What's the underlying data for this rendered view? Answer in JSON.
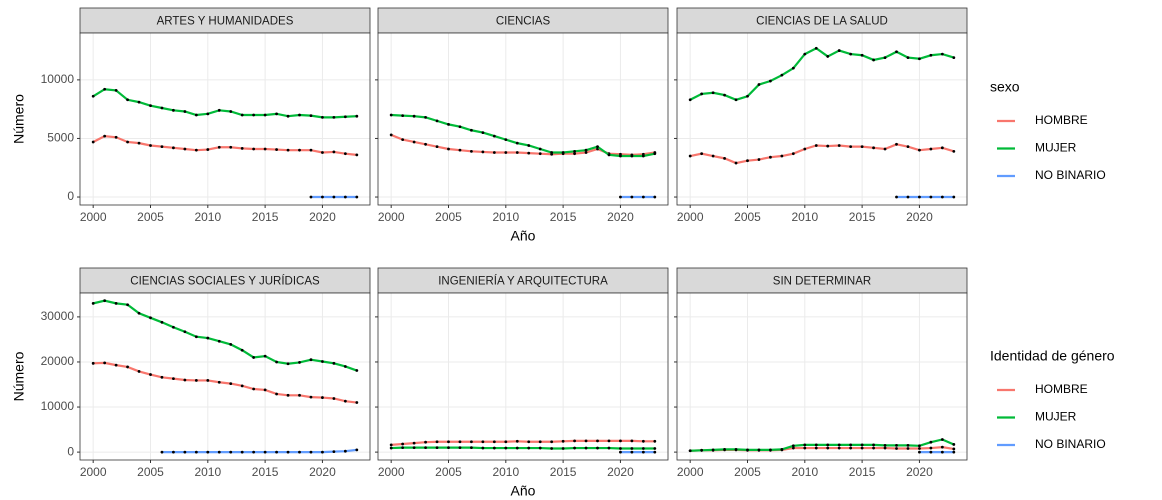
{
  "chart_data": [
    {
      "type": "line",
      "title": "ARTES Y HUMANIDADES",
      "y_label": "Número",
      "x": [
        2000,
        2001,
        2002,
        2003,
        2004,
        2005,
        2006,
        2007,
        2008,
        2009,
        2010,
        2011,
        2012,
        2013,
        2014,
        2015,
        2016,
        2017,
        2018,
        2019,
        2020,
        2021,
        2022,
        2023
      ],
      "xlim": [
        1998.85,
        2024.15
      ],
      "xticks": [
        2000,
        2005,
        2010,
        2015,
        2020
      ],
      "ylim": [
        -680,
        14000
      ],
      "yticks": [
        0,
        5000,
        10000
      ],
      "grid": true,
      "series": [
        {
          "name": "HOMBRE",
          "color": "#F8766D",
          "values": [
            4700,
            5200,
            5100,
            4700,
            4600,
            4400,
            4300,
            4200,
            4100,
            4000,
            4050,
            4250,
            4250,
            4150,
            4100,
            4100,
            4050,
            4000,
            4000,
            4000,
            3800,
            3850,
            3700,
            3600
          ]
        },
        {
          "name": "MUJER",
          "color": "#00BA38",
          "values": [
            8600,
            9200,
            9100,
            8300,
            8100,
            7800,
            7600,
            7400,
            7300,
            7000,
            7100,
            7400,
            7300,
            7000,
            7000,
            7000,
            7100,
            6900,
            7000,
            6950,
            6800,
            6800,
            6850,
            6900
          ]
        },
        {
          "name": "NO BINARIO",
          "color": "#619CFF",
          "values": [
            null,
            null,
            null,
            null,
            null,
            null,
            null,
            null,
            null,
            null,
            null,
            null,
            null,
            null,
            null,
            null,
            null,
            null,
            null,
            0,
            0,
            0,
            0,
            0
          ]
        }
      ]
    },
    {
      "type": "line",
      "title": "CIENCIAS",
      "x_label": "Año",
      "x": [
        2000,
        2001,
        2002,
        2003,
        2004,
        2005,
        2006,
        2007,
        2008,
        2009,
        2010,
        2011,
        2012,
        2013,
        2014,
        2015,
        2016,
        2017,
        2018,
        2019,
        2020,
        2021,
        2022,
        2023
      ],
      "xlim": [
        1998.85,
        2024.15
      ],
      "xticks": [
        2000,
        2005,
        2010,
        2015,
        2020
      ],
      "ylim": [
        -680,
        14000
      ],
      "yticks": [
        0,
        5000,
        10000
      ],
      "grid": true,
      "series": [
        {
          "name": "HOMBRE",
          "color": "#F8766D",
          "values": [
            5300,
            4900,
            4700,
            4500,
            4300,
            4100,
            4000,
            3900,
            3850,
            3800,
            3800,
            3800,
            3750,
            3700,
            3650,
            3700,
            3700,
            3800,
            4100,
            3700,
            3650,
            3600,
            3650,
            3800
          ]
        },
        {
          "name": "MUJER",
          "color": "#00BA38",
          "values": [
            7000,
            6950,
            6900,
            6800,
            6500,
            6200,
            6000,
            5700,
            5500,
            5200,
            4900,
            4600,
            4400,
            4100,
            3800,
            3800,
            3900,
            4000,
            4300,
            3600,
            3500,
            3500,
            3500,
            3700
          ]
        },
        {
          "name": "NO BINARIO",
          "color": "#619CFF",
          "values": [
            null,
            null,
            null,
            null,
            null,
            null,
            null,
            null,
            null,
            null,
            null,
            null,
            null,
            null,
            null,
            null,
            null,
            null,
            null,
            null,
            0,
            0,
            0,
            0
          ]
        }
      ]
    },
    {
      "type": "line",
      "title": "CIENCIAS DE LA SALUD",
      "x": [
        2000,
        2001,
        2002,
        2003,
        2004,
        2005,
        2006,
        2007,
        2008,
        2009,
        2010,
        2011,
        2012,
        2013,
        2014,
        2015,
        2016,
        2017,
        2018,
        2019,
        2020,
        2021,
        2022,
        2023
      ],
      "xlim": [
        1998.85,
        2024.15
      ],
      "xticks": [
        2000,
        2005,
        2010,
        2015,
        2020
      ],
      "ylim": [
        -680,
        14000
      ],
      "yticks": [
        0,
        5000,
        10000
      ],
      "grid": true,
      "series": [
        {
          "name": "HOMBRE",
          "color": "#F8766D",
          "values": [
            3500,
            3700,
            3500,
            3300,
            2900,
            3100,
            3200,
            3400,
            3500,
            3700,
            4100,
            4400,
            4350,
            4400,
            4300,
            4300,
            4200,
            4100,
            4500,
            4300,
            4000,
            4100,
            4200,
            3900
          ]
        },
        {
          "name": "MUJER",
          "color": "#00BA38",
          "values": [
            8300,
            8800,
            8900,
            8700,
            8300,
            8600,
            9600,
            9900,
            10400,
            11000,
            12200,
            12700,
            12000,
            12500,
            12200,
            12100,
            11700,
            11900,
            12400,
            11900,
            11800,
            12100,
            12200,
            11900
          ]
        },
        {
          "name": "NO BINARIO",
          "color": "#619CFF",
          "values": [
            null,
            null,
            null,
            null,
            null,
            null,
            null,
            null,
            null,
            null,
            null,
            null,
            null,
            null,
            null,
            null,
            null,
            null,
            0,
            0,
            0,
            0,
            0,
            0
          ]
        }
      ]
    },
    {
      "type": "line",
      "title": "CIENCIAS SOCIALES Y JURÍDICAS",
      "y_label": "Número",
      "x": [
        2000,
        2001,
        2002,
        2003,
        2004,
        2005,
        2006,
        2007,
        2008,
        2009,
        2010,
        2011,
        2012,
        2013,
        2014,
        2015,
        2016,
        2017,
        2018,
        2019,
        2020,
        2021,
        2022,
        2023
      ],
      "xlim": [
        1998.85,
        2024.15
      ],
      "xticks": [
        2000,
        2005,
        2010,
        2015,
        2020
      ],
      "ylim": [
        -1750,
        35300
      ],
      "yticks": [
        0,
        10000,
        20000,
        30000
      ],
      "grid": true,
      "series": [
        {
          "name": "HOMBRE",
          "color": "#F8766D",
          "values": [
            19700,
            19800,
            19300,
            18900,
            17900,
            17200,
            16600,
            16300,
            16000,
            15900,
            15900,
            15500,
            15200,
            14700,
            14000,
            13800,
            12900,
            12600,
            12600,
            12200,
            12100,
            11900,
            11300,
            11000
          ]
        },
        {
          "name": "MUJER",
          "color": "#00BA38",
          "values": [
            33000,
            33600,
            33000,
            32700,
            30800,
            29800,
            28800,
            27700,
            26700,
            25600,
            25300,
            24600,
            23900,
            22600,
            21000,
            21300,
            20000,
            19600,
            19900,
            20500,
            20100,
            19700,
            19000,
            18100
          ]
        },
        {
          "name": "NO BINARIO",
          "color": "#619CFF",
          "values": [
            null,
            null,
            null,
            null,
            null,
            null,
            0,
            0,
            0,
            0,
            0,
            0,
            0,
            0,
            0,
            0,
            0,
            0,
            0,
            0,
            0,
            100,
            200,
            500
          ]
        }
      ]
    },
    {
      "type": "line",
      "title": "INGENIERÍA Y ARQUITECTURA",
      "x_label": "Año",
      "x": [
        2000,
        2001,
        2002,
        2003,
        2004,
        2005,
        2006,
        2007,
        2008,
        2009,
        2010,
        2011,
        2012,
        2013,
        2014,
        2015,
        2016,
        2017,
        2018,
        2019,
        2020,
        2021,
        2022,
        2023
      ],
      "xlim": [
        1998.85,
        2024.15
      ],
      "xticks": [
        2000,
        2005,
        2010,
        2015,
        2020
      ],
      "ylim": [
        -1750,
        35300
      ],
      "yticks": [
        0,
        10000,
        20000,
        30000
      ],
      "grid": true,
      "series": [
        {
          "name": "HOMBRE",
          "color": "#F8766D",
          "values": [
            1600,
            1800,
            2000,
            2200,
            2300,
            2300,
            2300,
            2300,
            2300,
            2300,
            2300,
            2400,
            2300,
            2300,
            2300,
            2400,
            2500,
            2500,
            2500,
            2500,
            2500,
            2500,
            2400,
            2400
          ]
        },
        {
          "name": "MUJER",
          "color": "#00BA38",
          "values": [
            900,
            1000,
            1000,
            1000,
            1000,
            1000,
            1000,
            1000,
            900,
            900,
            900,
            900,
            900,
            900,
            800,
            800,
            900,
            900,
            900,
            900,
            800,
            800,
            800,
            800
          ]
        },
        {
          "name": "NO BINARIO",
          "color": "#619CFF",
          "values": [
            null,
            null,
            null,
            null,
            null,
            null,
            null,
            null,
            null,
            null,
            null,
            null,
            null,
            null,
            null,
            null,
            null,
            null,
            null,
            null,
            0,
            0,
            0,
            0
          ]
        }
      ]
    },
    {
      "type": "line",
      "title": "SIN DETERMINAR",
      "x": [
        2000,
        2001,
        2002,
        2003,
        2004,
        2005,
        2006,
        2007,
        2008,
        2009,
        2010,
        2011,
        2012,
        2013,
        2014,
        2015,
        2016,
        2017,
        2018,
        2019,
        2020,
        2021,
        2022,
        2023
      ],
      "xlim": [
        1998.85,
        2024.15
      ],
      "xticks": [
        2000,
        2005,
        2010,
        2015,
        2020
      ],
      "ylim": [
        -1750,
        35300
      ],
      "yticks": [
        0,
        10000,
        20000,
        30000
      ],
      "grid": true,
      "series": [
        {
          "name": "HOMBRE",
          "color": "#F8766D",
          "values": [
            300,
            400,
            400,
            500,
            500,
            400,
            400,
            400,
            500,
            900,
            900,
            900,
            900,
            900,
            900,
            900,
            900,
            900,
            800,
            800,
            800,
            900,
            1100,
            700
          ]
        },
        {
          "name": "MUJER",
          "color": "#00BA38",
          "values": [
            300,
            400,
            500,
            600,
            600,
            500,
            500,
            500,
            600,
            1400,
            1600,
            1600,
            1600,
            1600,
            1600,
            1600,
            1600,
            1500,
            1500,
            1500,
            1400,
            2200,
            2800,
            1700
          ]
        },
        {
          "name": "NO BINARIO",
          "color": "#619CFF",
          "values": [
            null,
            null,
            null,
            null,
            null,
            null,
            null,
            null,
            null,
            null,
            null,
            null,
            null,
            null,
            null,
            null,
            null,
            null,
            null,
            null,
            0,
            0,
            0,
            0
          ]
        }
      ]
    }
  ],
  "legends": [
    {
      "title": "sexo",
      "items": [
        {
          "name": "HOMBRE",
          "color": "#F8766D"
        },
        {
          "name": "MUJER",
          "color": "#00BA38"
        },
        {
          "name": "NO BINARIO",
          "color": "#619CFF"
        }
      ]
    },
    {
      "title": "Identidad de género",
      "items": [
        {
          "name": "HOMBRE",
          "color": "#F8766D"
        },
        {
          "name": "MUJER",
          "color": "#00BA38"
        },
        {
          "name": "NO BINARIO",
          "color": "#619CFF"
        }
      ]
    }
  ]
}
